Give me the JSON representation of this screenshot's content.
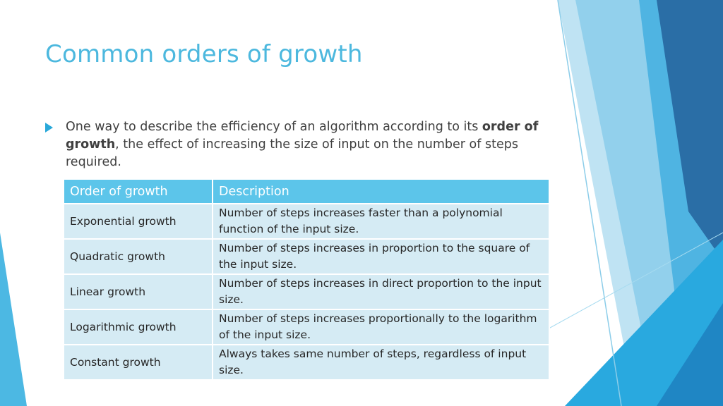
{
  "slide": {
    "title": "Common orders of growth",
    "bullet": {
      "text_before": "One way to describe the efficiency of an algorithm according to its ",
      "bold_text": "order of growth",
      "text_after": ", the effect of increasing the size of input on the number of steps required."
    }
  },
  "table": {
    "headers": [
      "Order of growth",
      "Description"
    ],
    "rows": [
      {
        "order": "Exponential growth",
        "description": "Number of steps increases faster than a polynomial function of the input size."
      },
      {
        "order": "Quadratic growth",
        "description": "Number of steps increases in proportion to the square of the input size."
      },
      {
        "order": "Linear growth",
        "description": "Number of steps increases in direct proportion to the input size."
      },
      {
        "order": "Logarithmic growth",
        "description": "Number of steps increases proportionally to the logarithm of the input size."
      },
      {
        "order": "Constant growth",
        "description": "Always takes same number of steps, regardless of input size."
      }
    ]
  },
  "colors": {
    "title": "#4cb8de",
    "bullet_arrow": "#29a8d9",
    "header_fill": "#5cc5ea",
    "row_fill": "#d5ebf4",
    "accent_dark": "#2a6ea6"
  }
}
